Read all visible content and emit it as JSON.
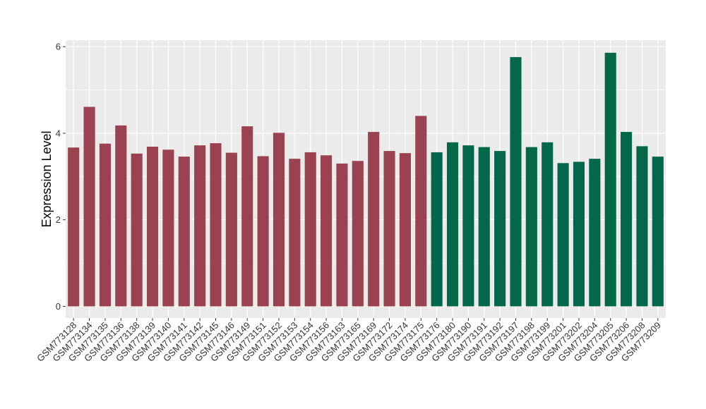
{
  "chart_data": {
    "type": "bar",
    "ylabel": "Expression Level",
    "xlabel": "",
    "ylim": [
      -0.27,
      6.15
    ],
    "yticks": [
      0,
      2,
      4,
      6
    ],
    "grid": true,
    "panel_background": "#ebebeb",
    "grid_color": "#ffffff",
    "categories": [
      "GSM773128",
      "GSM773134",
      "GSM773135",
      "GSM773136",
      "GSM773138",
      "GSM773139",
      "GSM773140",
      "GSM773141",
      "GSM773142",
      "GSM773145",
      "GSM773146",
      "GSM773149",
      "GSM773151",
      "GSM773152",
      "GSM773153",
      "GSM773154",
      "GSM773156",
      "GSM773163",
      "GSM773165",
      "GSM773169",
      "GSM773172",
      "GSM773174",
      "GSM773175",
      "GSM773176",
      "GSM773180",
      "GSM773190",
      "GSM773191",
      "GSM773192",
      "GSM773197",
      "GSM773198",
      "GSM773199",
      "GSM773201",
      "GSM773202",
      "GSM773204",
      "GSM773205",
      "GSM773206",
      "GSM773208",
      "GSM773209"
    ],
    "values": [
      3.67,
      4.61,
      3.76,
      4.18,
      3.53,
      3.69,
      3.62,
      3.46,
      3.72,
      3.77,
      3.55,
      4.16,
      3.47,
      4.01,
      3.41,
      3.56,
      3.49,
      3.3,
      3.36,
      4.03,
      3.59,
      3.54,
      4.4,
      3.56,
      3.79,
      3.72,
      3.68,
      3.59,
      5.76,
      3.68,
      3.79,
      3.31,
      3.34,
      3.41,
      5.86,
      4.03,
      3.7,
      3.46
    ],
    "bar_colors": [
      "#9b4250",
      "#03684a"
    ],
    "color_split_index": 23
  }
}
